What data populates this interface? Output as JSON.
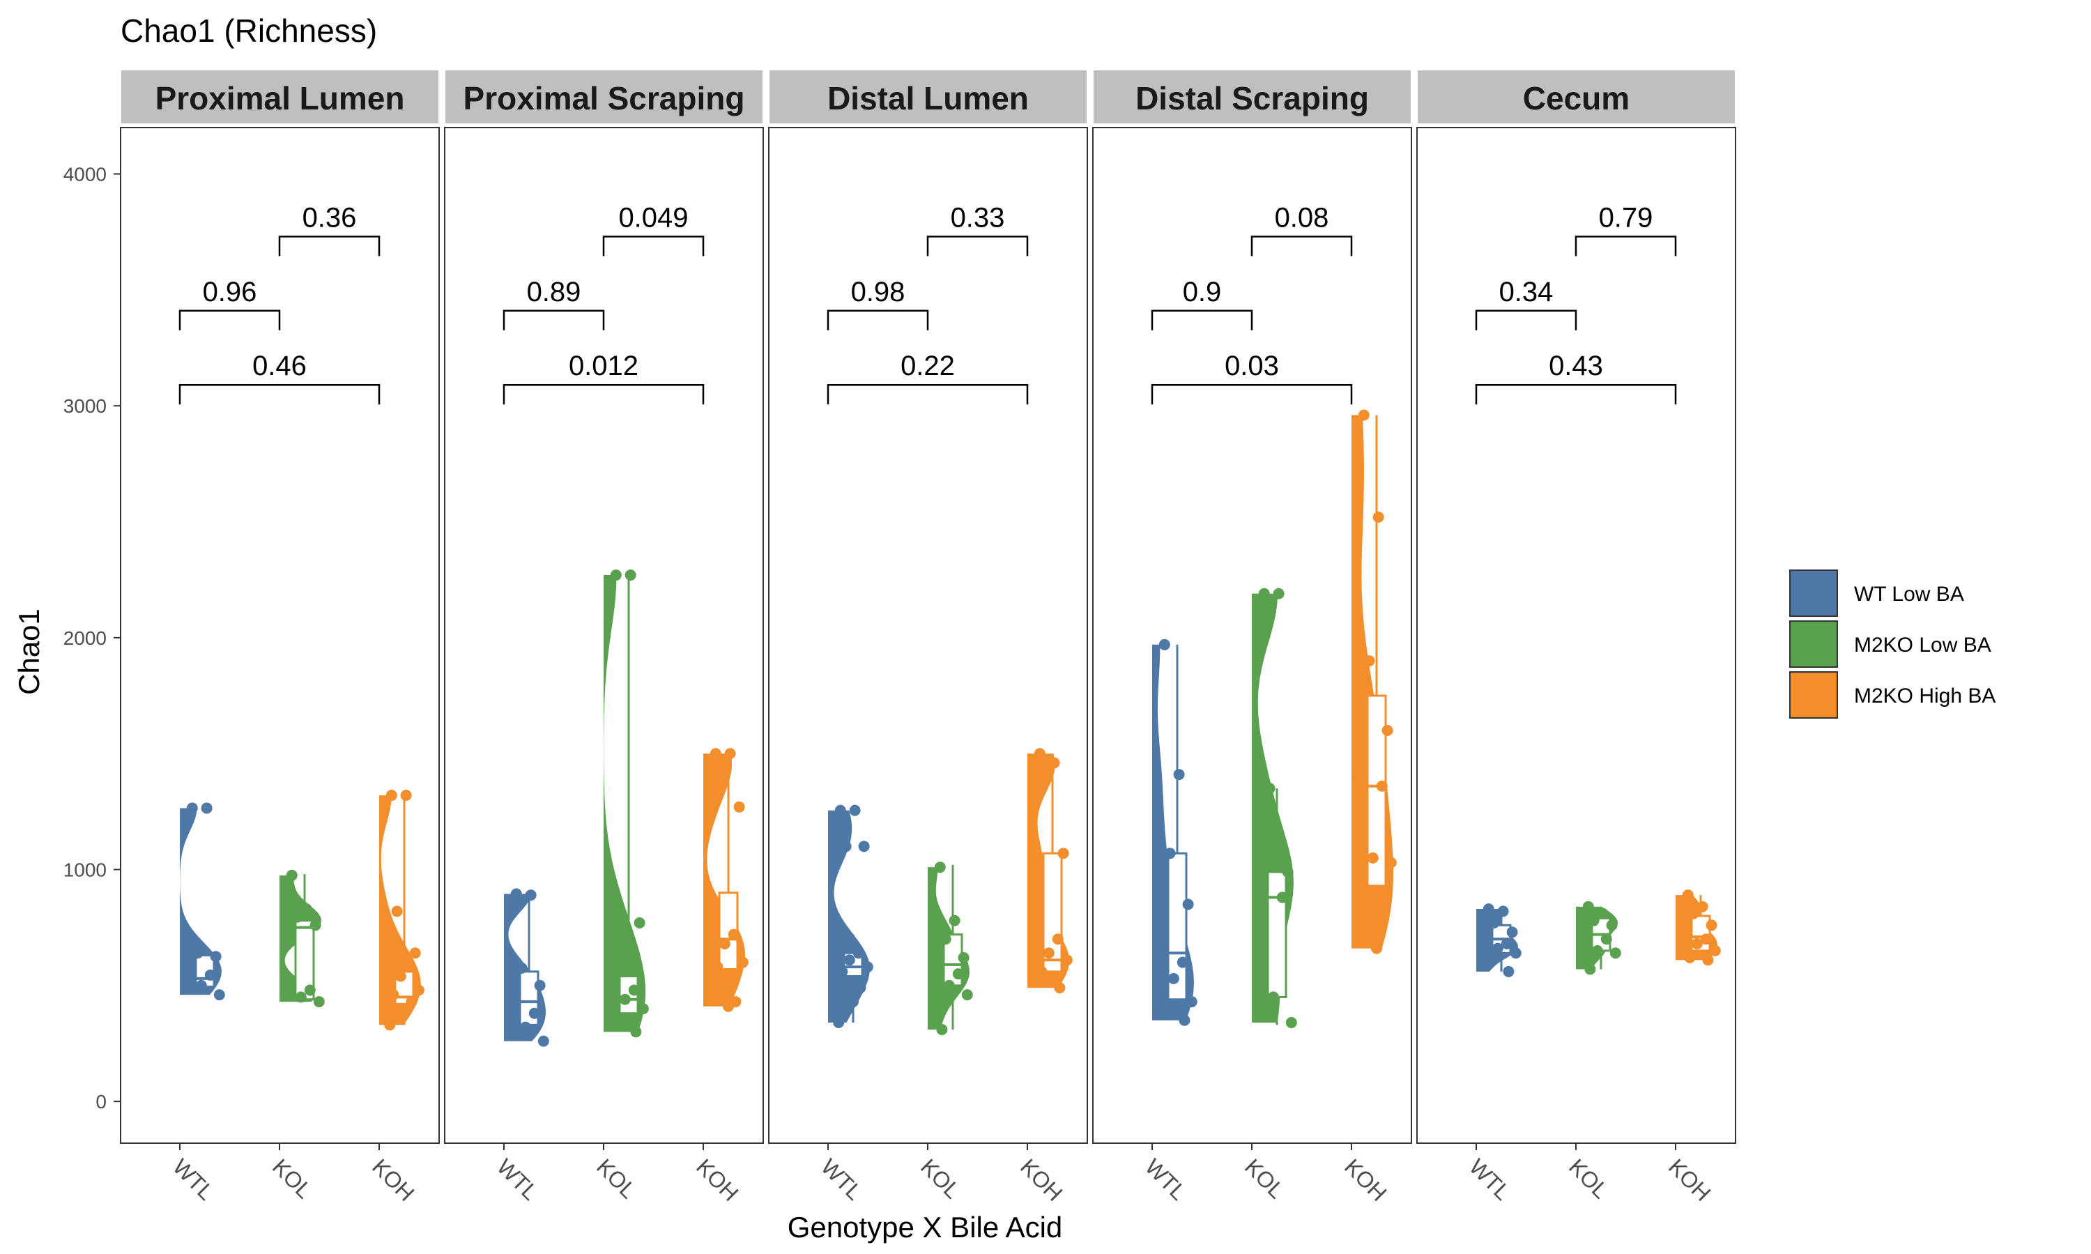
{
  "chart_data": {
    "type": "raincloud",
    "title": "Chao1 (Richness)",
    "xlabel": "Genotype X Bile Acid",
    "ylabel": "Chao1",
    "ylim": [
      -180,
      4200
    ],
    "yticks": [
      0,
      1000,
      2000,
      3000,
      4000
    ],
    "categories": [
      "WTL",
      "KOL",
      "KOH"
    ],
    "legend": {
      "position": "right",
      "entries": [
        {
          "key": "WTL",
          "label": "WT Low BA",
          "color": "#4E79A7"
        },
        {
          "key": "KOL",
          "label": "M2KO Low BA",
          "color": "#59A14F"
        },
        {
          "key": "KOH",
          "label": "M2KO High BA",
          "color": "#F28E2B"
        }
      ]
    },
    "facets": [
      {
        "name": "Proximal Lumen",
        "groups": [
          {
            "category": "WTL",
            "min": 460,
            "q1": 495,
            "median": 530,
            "q3": 630,
            "max": 640,
            "points": [
              1265,
              1265,
              640,
              625,
              575,
              545,
              500,
              460
            ]
          },
          {
            "category": "KOL",
            "min": 430,
            "q1": 440,
            "median": 750,
            "q3": 780,
            "max": 980,
            "points": [
              975,
              830,
              795,
              760,
              740,
              480,
              450,
              430
            ]
          },
          {
            "category": "KOH",
            "min": 330,
            "q1": 420,
            "median": 450,
            "q3": 560,
            "max": 1320,
            "points": [
              1320,
              1320,
              820,
              640,
              610,
              580,
              540,
              480,
              460,
              430,
              400,
              330
            ]
          }
        ],
        "comparisons": [
          {
            "pair": [
              "KOL",
              "KOH"
            ],
            "p": "0.36"
          },
          {
            "pair": [
              "WTL",
              "KOL"
            ],
            "p": "0.96"
          },
          {
            "pair": [
              "WTL",
              "KOH"
            ],
            "p": "0.46"
          }
        ]
      },
      {
        "name": "Proximal Scraping",
        "groups": [
          {
            "category": "WTL",
            "min": 260,
            "q1": 330,
            "median": 430,
            "q3": 560,
            "max": 900,
            "points": [
              895,
              890,
              575,
              500,
              430,
              380,
              320,
              260
            ]
          },
          {
            "category": "KOL",
            "min": 300,
            "q1": 380,
            "median": 440,
            "q3": 540,
            "max": 2270,
            "points": [
              2270,
              2270,
              770,
              770,
              540,
              480,
              440,
              400,
              360,
              300
            ]
          },
          {
            "category": "KOH",
            "min": 410,
            "q1": 570,
            "median": 700,
            "q3": 900,
            "max": 1500,
            "points": [
              1500,
              1500,
              1440,
              1270,
              770,
              720,
              680,
              600,
              580,
              430,
              410
            ]
          }
        ],
        "comparisons": [
          {
            "pair": [
              "KOL",
              "KOH"
            ],
            "p": "0.049"
          },
          {
            "pair": [
              "WTL",
              "KOL"
            ],
            "p": "0.89"
          },
          {
            "pair": [
              "WTL",
              "KOH"
            ],
            "p": "0.012"
          }
        ]
      },
      {
        "name": "Distal Lumen",
        "groups": [
          {
            "category": "WTL",
            "min": 340,
            "q1": 540,
            "median": 580,
            "q3": 640,
            "max": 720,
            "points": [
              1255,
              1255,
              1100,
              1100,
              720,
              640,
              610,
              580,
              560,
              490,
              430,
              340
            ]
          },
          {
            "category": "KOL",
            "min": 310,
            "q1": 500,
            "median": 590,
            "q3": 720,
            "max": 1020,
            "points": [
              1010,
              780,
              700,
              620,
              580,
              550,
              500,
              460,
              310
            ]
          },
          {
            "category": "KOH",
            "min": 490,
            "q1": 560,
            "median": 610,
            "q3": 1070,
            "max": 1500,
            "points": [
              1500,
              1460,
              1400,
              1070,
              920,
              700,
              640,
              610,
              560,
              490
            ]
          }
        ],
        "comparisons": [
          {
            "pair": [
              "KOL",
              "KOH"
            ],
            "p": "0.33"
          },
          {
            "pair": [
              "WTL",
              "KOL"
            ],
            "p": "0.98"
          },
          {
            "pair": [
              "WTL",
              "KOH"
            ],
            "p": "0.22"
          }
        ]
      },
      {
        "name": "Distal Scraping",
        "groups": [
          {
            "category": "WTL",
            "min": 350,
            "q1": 440,
            "median": 640,
            "q3": 1070,
            "max": 1970,
            "points": [
              1970,
              1410,
              1070,
              850,
              650,
              600,
              530,
              430,
              390,
              350
            ]
          },
          {
            "category": "KOL",
            "min": 330,
            "q1": 450,
            "median": 880,
            "q3": 990,
            "max": 1350,
            "points": [
              2190,
              2190,
              1350,
              990,
              940,
              880,
              450,
              340
            ]
          },
          {
            "category": "KOH",
            "min": 660,
            "q1": 930,
            "median": 1360,
            "q3": 1750,
            "max": 2960,
            "points": [
              2960,
              2520,
              1900,
              1600,
              1400,
              1360,
              1050,
              1030,
              820,
              800,
              660
            ]
          }
        ],
        "comparisons": [
          {
            "pair": [
              "KOL",
              "KOH"
            ],
            "p": "0.08"
          },
          {
            "pair": [
              "WTL",
              "KOL"
            ],
            "p": "0.9"
          },
          {
            "pair": [
              "WTL",
              "KOH"
            ],
            "p": "0.03"
          }
        ]
      },
      {
        "name": "Cecum",
        "groups": [
          {
            "category": "WTL",
            "min": 560,
            "q1": 640,
            "median": 700,
            "q3": 760,
            "max": 830,
            "points": [
              830,
              820,
              770,
              730,
              700,
              680,
              660,
              640,
              630,
              560
            ]
          },
          {
            "category": "KOL",
            "min": 570,
            "q1": 650,
            "median": 720,
            "q3": 790,
            "max": 840,
            "points": [
              840,
              810,
              780,
              760,
              740,
              700,
              650,
              640,
              570
            ]
          },
          {
            "category": "KOH",
            "min": 610,
            "q1": 650,
            "median": 710,
            "q3": 800,
            "max": 890,
            "points": [
              890,
              840,
              810,
              760,
              720,
              700,
              680,
              650,
              620,
              610
            ]
          }
        ],
        "comparisons": [
          {
            "pair": [
              "KOL",
              "KOH"
            ],
            "p": "0.79"
          },
          {
            "pair": [
              "WTL",
              "KOL"
            ],
            "p": "0.34"
          },
          {
            "pair": [
              "WTL",
              "KOH"
            ],
            "p": "0.43"
          }
        ]
      }
    ]
  }
}
